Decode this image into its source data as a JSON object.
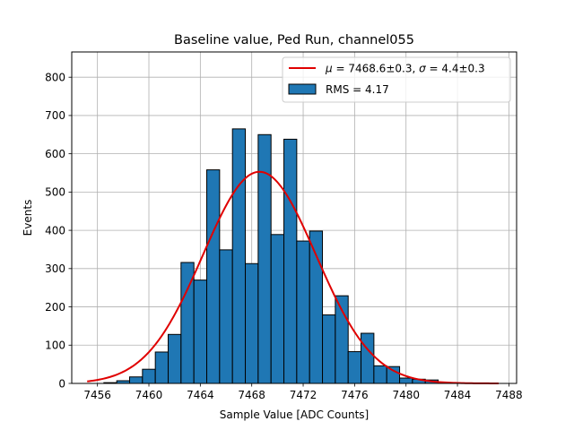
{
  "chart_data": {
    "type": "bar",
    "title": "Baseline value, Ped Run, channel055",
    "xlabel": "Sample Value [ADC Counts]",
    "ylabel": "Events",
    "xlim": [
      7454,
      7488.6
    ],
    "ylim": [
      0,
      866
    ],
    "xticks": [
      7456,
      7460,
      7464,
      7468,
      7472,
      7476,
      7480,
      7484,
      7488
    ],
    "yticks": [
      0,
      100,
      200,
      300,
      400,
      500,
      600,
      700,
      800
    ],
    "grid": true,
    "legend_position": "top-right",
    "bar_color": "#1f77b4",
    "fit_color": "#e00000",
    "bins": {
      "x": [
        7457,
        7458,
        7459,
        7460,
        7461,
        7462,
        7463,
        7464,
        7465,
        7466,
        7467,
        7468,
        7469,
        7470,
        7471,
        7472,
        7473,
        7474,
        7475,
        7476,
        7477,
        7478,
        7479,
        7480,
        7481,
        7482,
        7483
      ],
      "values": [
        2,
        7,
        17,
        37,
        82,
        128,
        316,
        270,
        558,
        349,
        665,
        313,
        650,
        389,
        638,
        372,
        398,
        179,
        229,
        83,
        131,
        46,
        44,
        14,
        11,
        9,
        1
      ],
      "width": 1
    },
    "fit": {
      "mu": 7468.6,
      "sigma": 4.4,
      "peak": 553,
      "x_range": [
        7455.2,
        7487.2
      ]
    },
    "legend": [
      {
        "kind": "line",
        "parts": [
          "μ",
          " = 7468.6±0.3, ",
          "σ",
          " = 4.4±0.3"
        ]
      },
      {
        "kind": "patch",
        "label": "RMS = 4.17"
      }
    ]
  }
}
